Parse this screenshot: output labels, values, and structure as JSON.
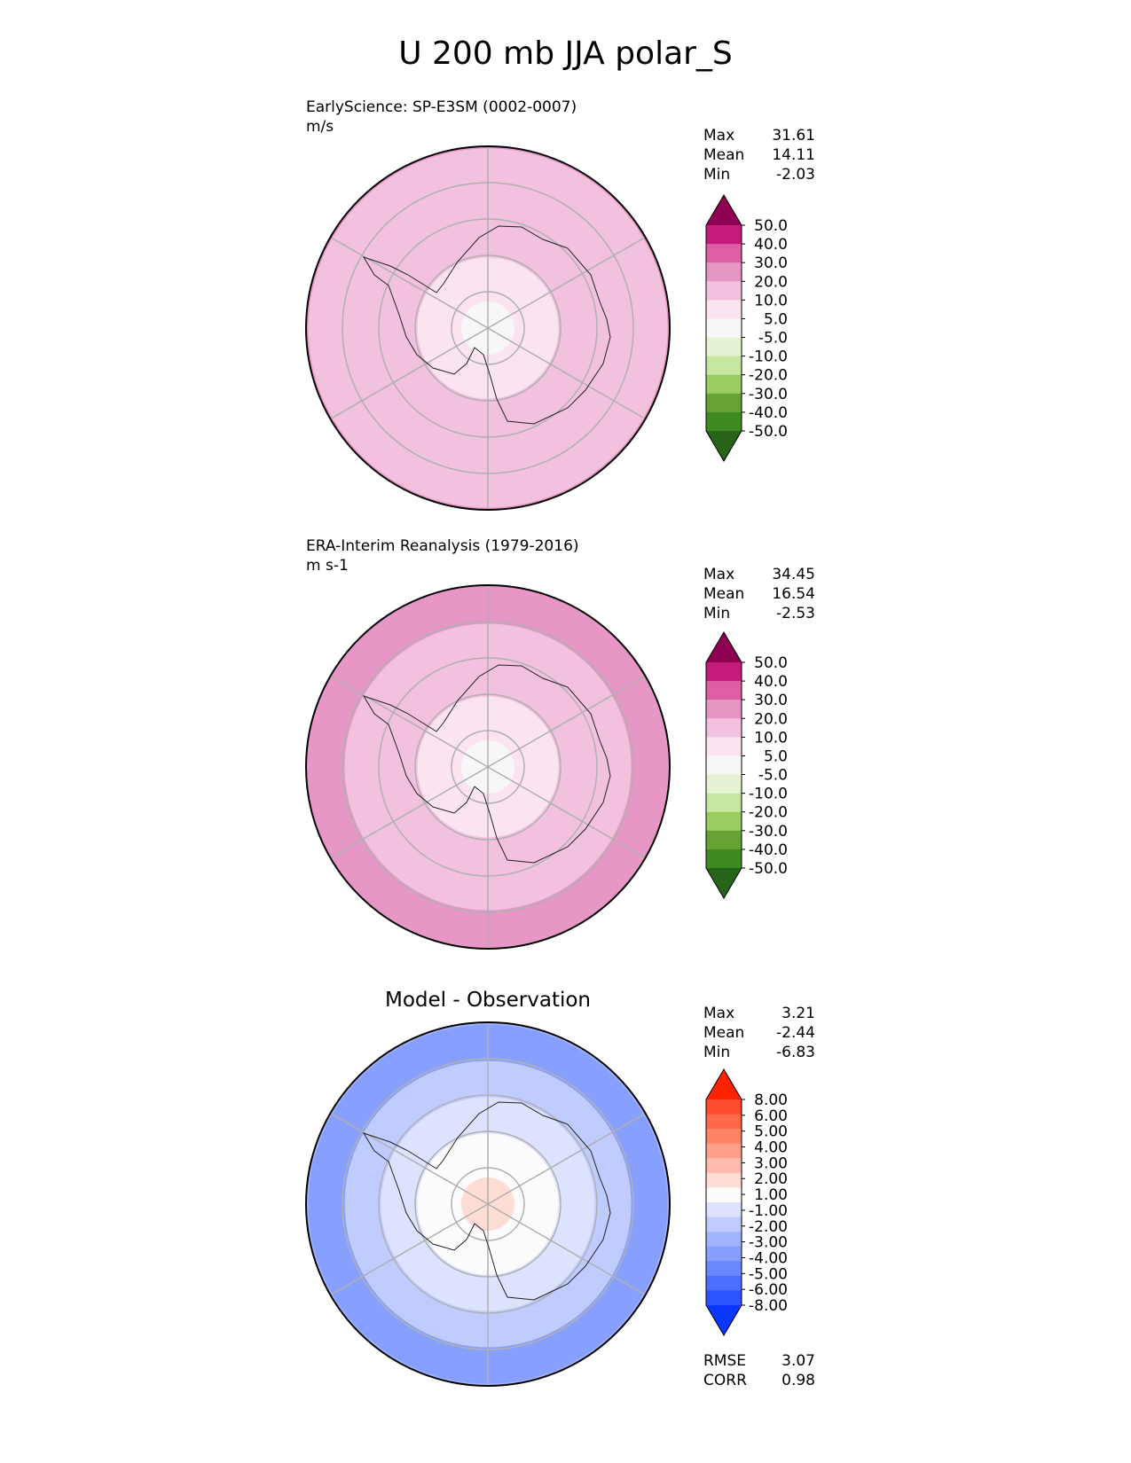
{
  "title": "U 200 mb JJA polar_S",
  "panels": [
    {
      "line1": "EarlyScience: SP-E3SM (0002-0007)",
      "line2": "m/s",
      "stats": [
        {
          "label": "Max",
          "value": "31.61"
        },
        {
          "label": "Mean",
          "value": "14.11"
        },
        {
          "label": "Min",
          "value": "-2.03"
        }
      ]
    },
    {
      "line1": "ERA-Interim Reanalysis (1979-2016)",
      "line2": "m s-1",
      "stats": [
        {
          "label": "Max",
          "value": "34.45"
        },
        {
          "label": "Mean",
          "value": "16.54"
        },
        {
          "label": "Min",
          "value": "-2.53"
        }
      ]
    },
    {
      "title": "Model - Observation",
      "stats": [
        {
          "label": "Max",
          "value": "3.21"
        },
        {
          "label": "Mean",
          "value": "-2.44"
        },
        {
          "label": "Min",
          "value": "-6.83"
        }
      ],
      "metrics": [
        {
          "label": "RMSE",
          "value": "3.07"
        },
        {
          "label": "CORR",
          "value": "0.98"
        }
      ]
    }
  ],
  "chart_data": [
    {
      "type": "heatmap",
      "projection": "south-polar-stereographic",
      "variable": "U 200 mb",
      "units": "m/s",
      "levels": [
        "50.0",
        "40.0",
        "30.0",
        "20.0",
        "10.0",
        "5.0",
        "-5.0",
        "-10.0",
        "-20.0",
        "-30.0",
        "-40.0",
        "-50.0"
      ],
      "colors": [
        "#8e0152",
        "#c51b7d",
        "#de5ea4",
        "#e797c5",
        "#f2c1dd",
        "#fbe3f0",
        "#f7f7f7",
        "#e5f3d3",
        "#c5e7a1",
        "#98cc62",
        "#66a333",
        "#3e8a21",
        "#276419"
      ],
      "zonal_mean_by_colatitude": [
        {
          "colat_deg": 0,
          "u": 2
        },
        {
          "colat_deg": 15,
          "u": 6
        },
        {
          "colat_deg": 25,
          "u": 12
        },
        {
          "colat_deg": 35,
          "u": 15
        },
        {
          "colat_deg": 45,
          "u": 17
        },
        {
          "colat_deg": 50,
          "u": 22
        }
      ],
      "max": 31.61,
      "mean": 14.11,
      "min": -2.03
    },
    {
      "type": "heatmap",
      "projection": "south-polar-stereographic",
      "variable": "U 200 mb",
      "units": "m s-1",
      "levels": [
        "50.0",
        "40.0",
        "30.0",
        "20.0",
        "10.0",
        "5.0",
        "-5.0",
        "-10.0",
        "-20.0",
        "-30.0",
        "-40.0",
        "-50.0"
      ],
      "colors": [
        "#8e0152",
        "#c51b7d",
        "#de5ea4",
        "#e797c5",
        "#f2c1dd",
        "#fbe3f0",
        "#f7f7f7",
        "#e5f3d3",
        "#c5e7a1",
        "#98cc62",
        "#66a333",
        "#3e8a21",
        "#276419"
      ],
      "zonal_mean_by_colatitude": [
        {
          "colat_deg": 0,
          "u": 2
        },
        {
          "colat_deg": 15,
          "u": 7
        },
        {
          "colat_deg": 25,
          "u": 14
        },
        {
          "colat_deg": 35,
          "u": 18
        },
        {
          "colat_deg": 45,
          "u": 24
        },
        {
          "colat_deg": 50,
          "u": 26
        }
      ],
      "max": 34.45,
      "mean": 16.54,
      "min": -2.53
    },
    {
      "type": "heatmap",
      "projection": "south-polar-stereographic",
      "variable": "U 200 mb difference",
      "levels": [
        "8.00",
        "6.00",
        "5.00",
        "4.00",
        "3.00",
        "2.00",
        "1.00",
        "-1.00",
        "-2.00",
        "-3.00",
        "-4.00",
        "-5.00",
        "-6.00",
        "-8.00"
      ],
      "colors": [
        "#ff2200",
        "#ff4a2b",
        "#ff6848",
        "#ff8466",
        "#ffa08a",
        "#ffbcae",
        "#ffdcd4",
        "#fcfcfc",
        "#dde3ff",
        "#c0ccff",
        "#a2b4ff",
        "#879fff",
        "#6987ff",
        "#4d6fff",
        "#2c53ff",
        "#0a36ff"
      ],
      "zonal_mean_by_colatitude": [
        {
          "colat_deg": 0,
          "u": 1.5
        },
        {
          "colat_deg": 15,
          "u": -0.5
        },
        {
          "colat_deg": 25,
          "u": -1.5
        },
        {
          "colat_deg": 35,
          "u": -2.5
        },
        {
          "colat_deg": 45,
          "u": -4.5
        },
        {
          "colat_deg": 50,
          "u": -3.5
        }
      ],
      "max": 3.21,
      "mean": -2.44,
      "min": -6.83,
      "rmse": 3.07,
      "corr": 0.98
    }
  ]
}
